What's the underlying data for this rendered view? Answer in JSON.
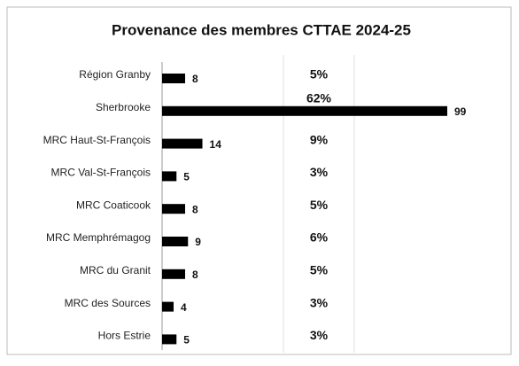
{
  "chart_data": {
    "type": "bar",
    "orientation": "horizontal",
    "title": "Provenance des membres CTTAE 2024-25",
    "categories": [
      "Région Granby",
      "Sherbrooke",
      "MRC Haut-St-François",
      "MRC Val-St-François",
      "MRC Coaticook",
      "MRC Memphrémagog",
      "MRC du Granit",
      "MRC des Sources",
      "Hors Estrie"
    ],
    "values": [
      8,
      99,
      14,
      5,
      8,
      9,
      8,
      4,
      5
    ],
    "shares": [
      5,
      62,
      9,
      3,
      5,
      6,
      5,
      3,
      3
    ],
    "share_labels": [
      "5%",
      "62%",
      "9%",
      "3%",
      "5%",
      "6%",
      "5%",
      "3%",
      "3%"
    ],
    "color": "#000000"
  }
}
